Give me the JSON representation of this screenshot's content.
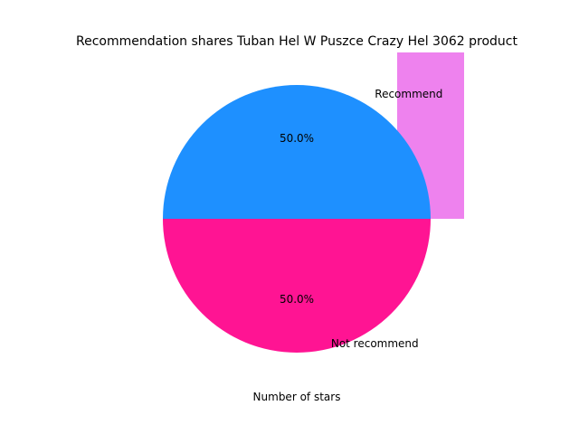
{
  "chart_data": {
    "type": "pie",
    "title": "Recommendation shares Tuban Hel W Puszce Crazy Hel 3062 product",
    "xlabel": "Number of stars",
    "slices": [
      {
        "label": "Recommend",
        "value": 50.0,
        "pct_label": "50.0%",
        "color": "#1E90FF"
      },
      {
        "label": "Not recommend",
        "value": 50.0,
        "pct_label": "50.0%",
        "color": "#FF1493"
      }
    ],
    "extra_bar": {
      "color": "#EE82EE"
    }
  }
}
